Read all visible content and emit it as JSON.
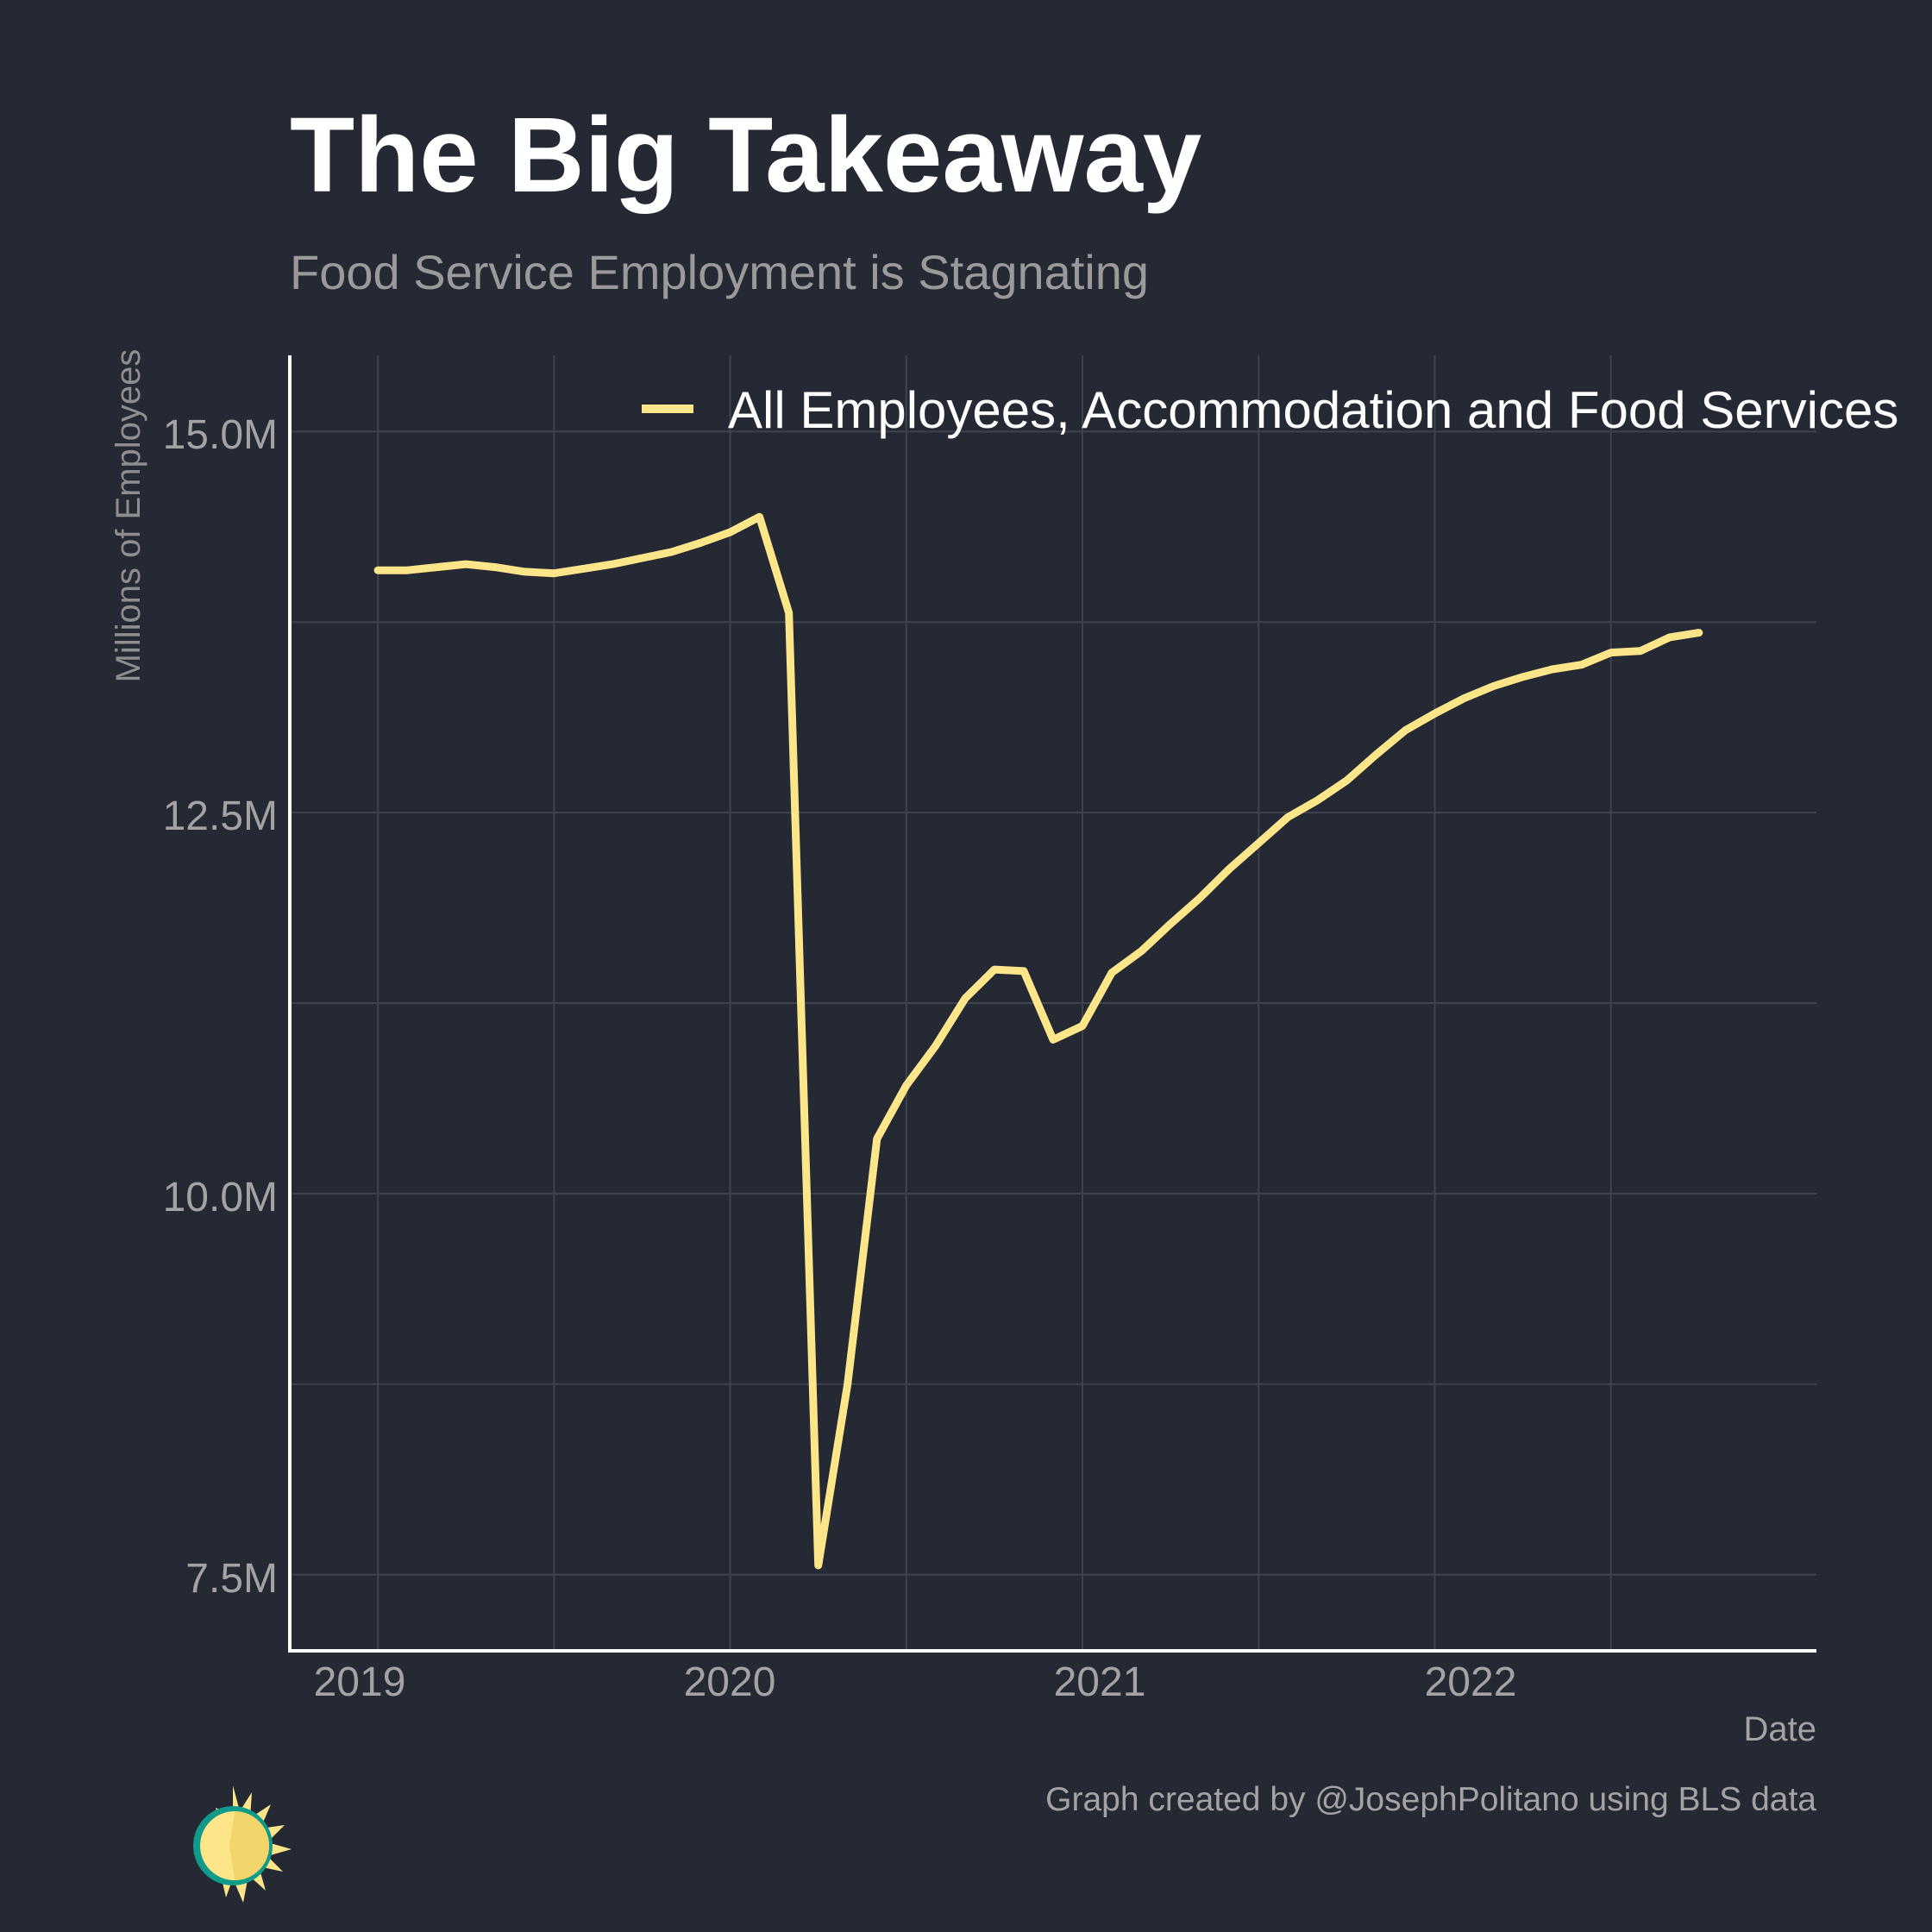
{
  "title": "The Big Takeaway",
  "subtitle": "Food Service Employment is Stagnating",
  "caption": "Graph created by @JosephPolitano using BLS data",
  "colors": {
    "background": "#252933",
    "line": "#fde68a",
    "grid": "#3e434d",
    "axis": "#ffffff"
  },
  "logo": "sun-logo-icon",
  "chart_data": {
    "type": "line",
    "title": "The Big Takeaway",
    "subtitle": "Food Service Employment is Stagnating",
    "xlabel": "Date",
    "ylabel": "Millions of Employees",
    "x_ticks": [
      "2019",
      "2020",
      "2021",
      "2022"
    ],
    "y_ticks": [
      "7.5M",
      "10.0M",
      "12.5M",
      "15.0M"
    ],
    "y_tick_values": [
      7.5,
      10.0,
      12.5,
      15.0
    ],
    "ylim": [
      7.0,
      15.5
    ],
    "xlim": [
      "2018-10",
      "2023-02"
    ],
    "grid": true,
    "legend_position": "top",
    "series": [
      {
        "name": "All Employees, Accommodation and Food Services",
        "x": [
          "2019-01",
          "2019-02",
          "2019-03",
          "2019-04",
          "2019-05",
          "2019-06",
          "2019-07",
          "2019-08",
          "2019-09",
          "2019-10",
          "2019-11",
          "2019-12",
          "2020-01",
          "2020-02",
          "2020-03",
          "2020-04",
          "2020-05",
          "2020-06",
          "2020-07",
          "2020-08",
          "2020-09",
          "2020-10",
          "2020-11",
          "2020-12",
          "2021-01",
          "2021-02",
          "2021-03",
          "2021-04",
          "2021-05",
          "2021-06",
          "2021-07",
          "2021-08",
          "2021-09",
          "2021-10",
          "2021-11",
          "2021-12",
          "2022-01",
          "2022-02",
          "2022-03",
          "2022-04",
          "2022-05",
          "2022-06",
          "2022-07",
          "2022-08",
          "2022-09",
          "2022-10"
        ],
        "values": [
          14.09,
          14.09,
          14.11,
          14.13,
          14.11,
          14.08,
          14.07,
          14.1,
          14.13,
          14.17,
          14.21,
          14.27,
          14.34,
          14.44,
          13.81,
          7.56,
          8.75,
          10.36,
          10.71,
          10.97,
          11.28,
          11.47,
          11.46,
          11.01,
          11.1,
          11.45,
          11.59,
          11.77,
          11.94,
          12.13,
          12.3,
          12.47,
          12.58,
          12.71,
          12.88,
          13.04,
          13.15,
          13.25,
          13.33,
          13.39,
          13.44,
          13.47,
          13.55,
          13.56,
          13.65,
          13.68
        ]
      }
    ]
  }
}
